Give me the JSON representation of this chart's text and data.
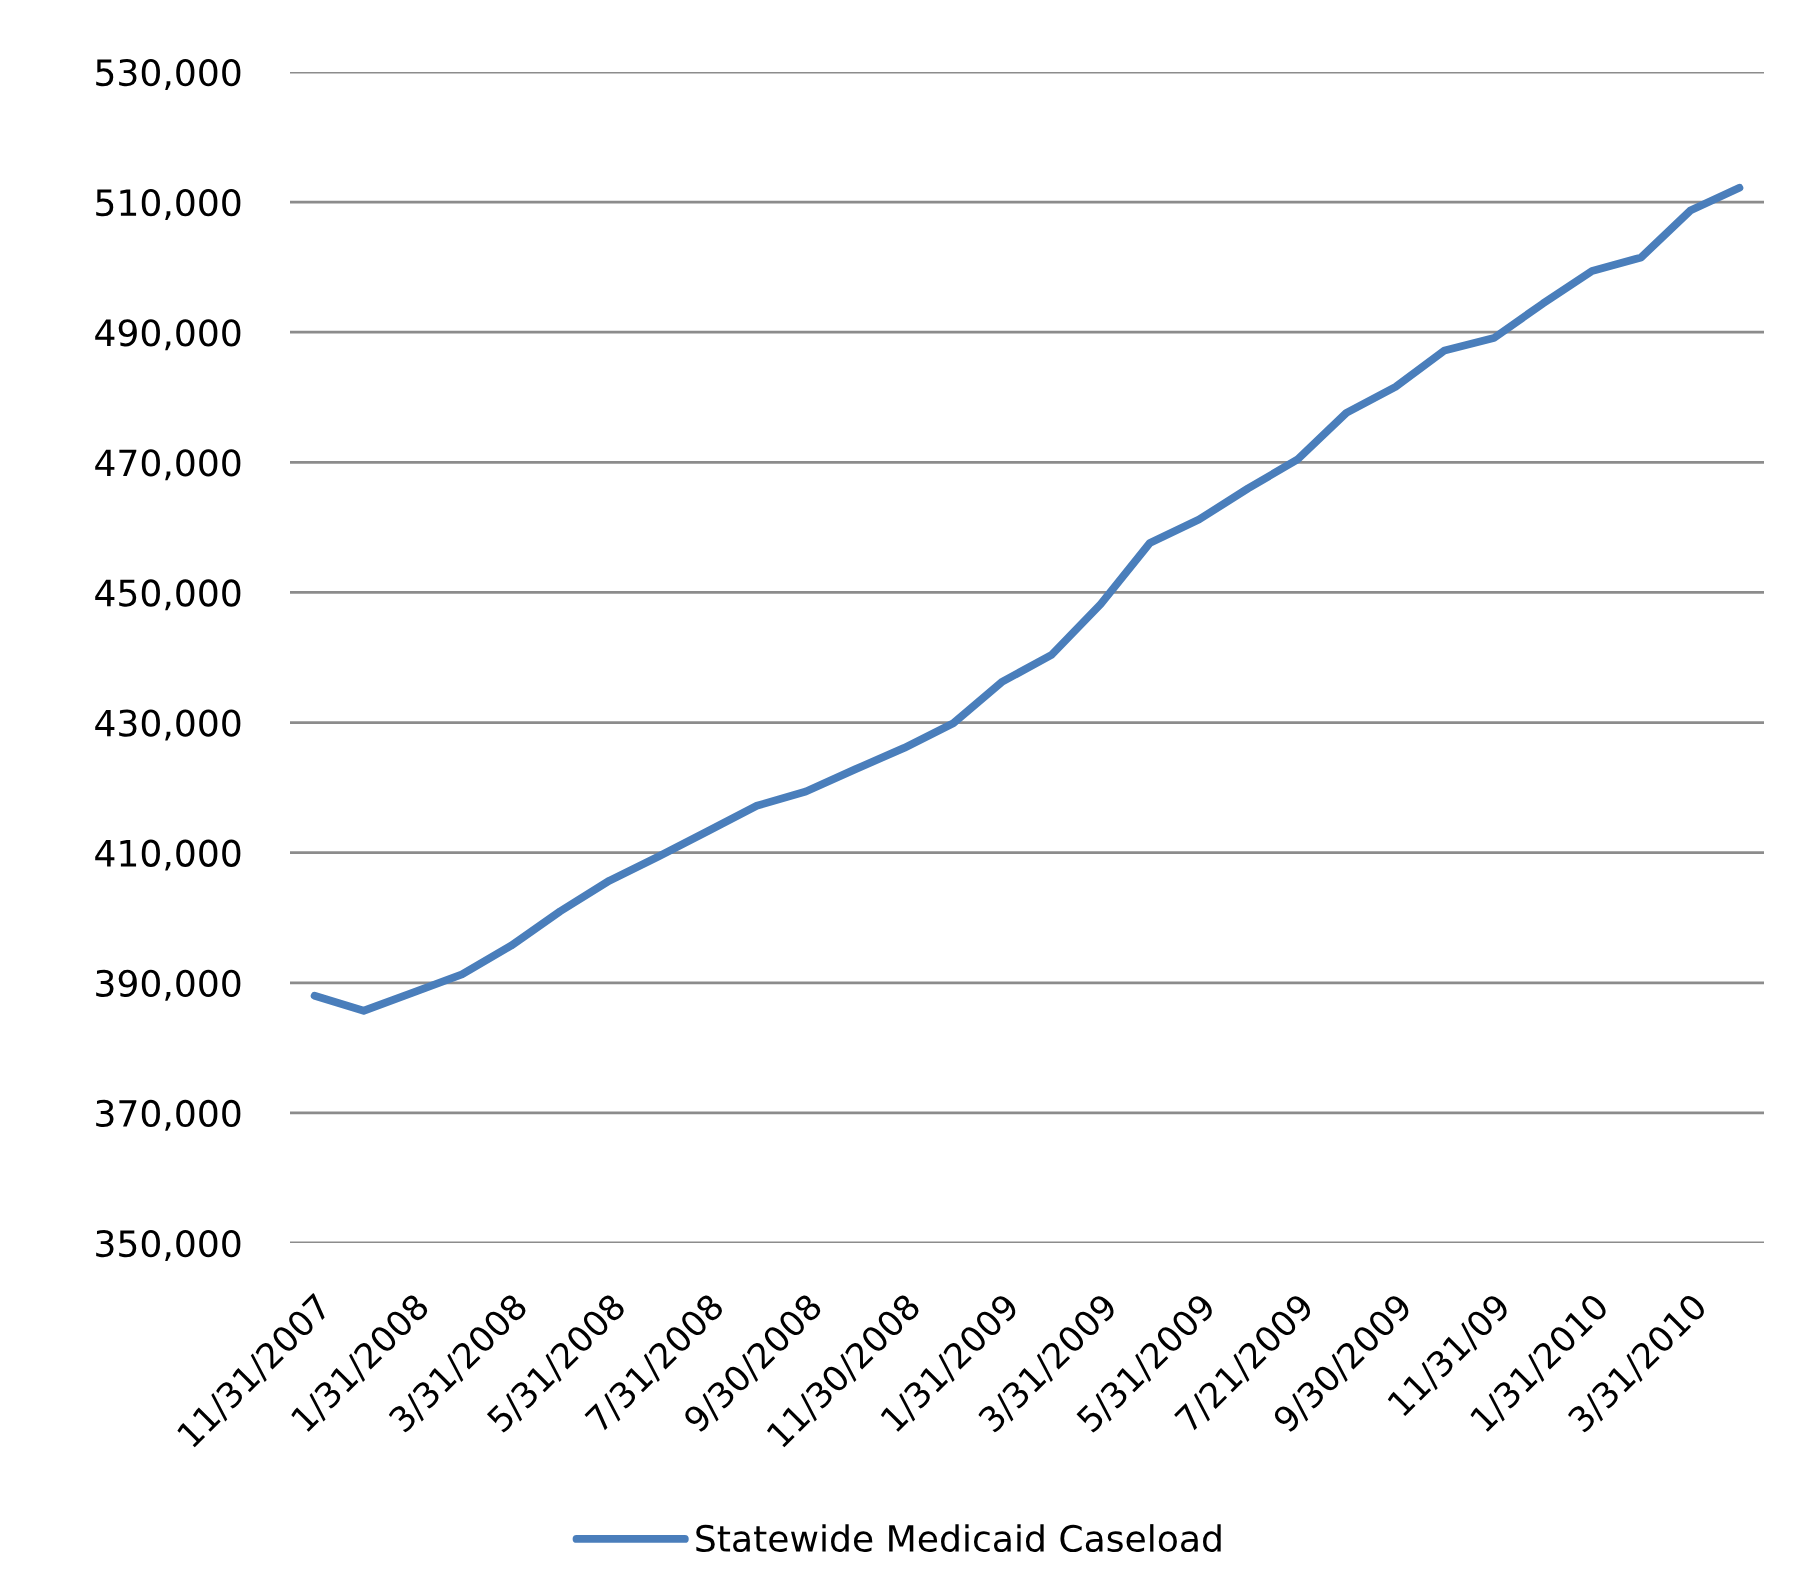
{
  "chart_data": {
    "type": "line",
    "categories": [
      "11/31/2007",
      null,
      "1/31/2008",
      null,
      "3/31/2008",
      null,
      "5/31/2008",
      null,
      "7/31/2008",
      null,
      "9/30/2008",
      null,
      "11/30/2008",
      null,
      "1/31/2009",
      null,
      "3/31/2009",
      null,
      "5/31/2009",
      null,
      "7/21/2009",
      null,
      "9/30/2009",
      null,
      "11/31/09",
      null,
      "1/31/2010",
      null,
      "3/31/2010",
      null
    ],
    "series": [
      {
        "name": "Statewide Medicaid Caseload",
        "color": "#4a7ebb",
        "values": [
          388000,
          385700,
          388500,
          391300,
          395700,
          401000,
          405700,
          409400,
          413300,
          417200,
          419400,
          422800,
          426100,
          429900,
          436300,
          440400,
          448200,
          457600,
          461200,
          466000,
          470400,
          477600,
          481600,
          487200,
          489100,
          494400,
          499400,
          501500,
          508700,
          512200
        ]
      }
    ],
    "ylim": [
      350000,
      530000
    ],
    "yticks": [
      {
        "value": 350000,
        "label": "350,000"
      },
      {
        "value": 370000,
        "label": "370,000"
      },
      {
        "value": 390000,
        "label": "390,000"
      },
      {
        "value": 410000,
        "label": "410,000"
      },
      {
        "value": 430000,
        "label": "430,000"
      },
      {
        "value": 450000,
        "label": "450,000"
      },
      {
        "value": 470000,
        "label": "470,000"
      },
      {
        "value": 490000,
        "label": "490,000"
      },
      {
        "value": 510000,
        "label": "510,000"
      },
      {
        "value": 530000,
        "label": "530,000"
      }
    ],
    "grid": "y",
    "legend": "bottom",
    "line_style": "solid"
  }
}
